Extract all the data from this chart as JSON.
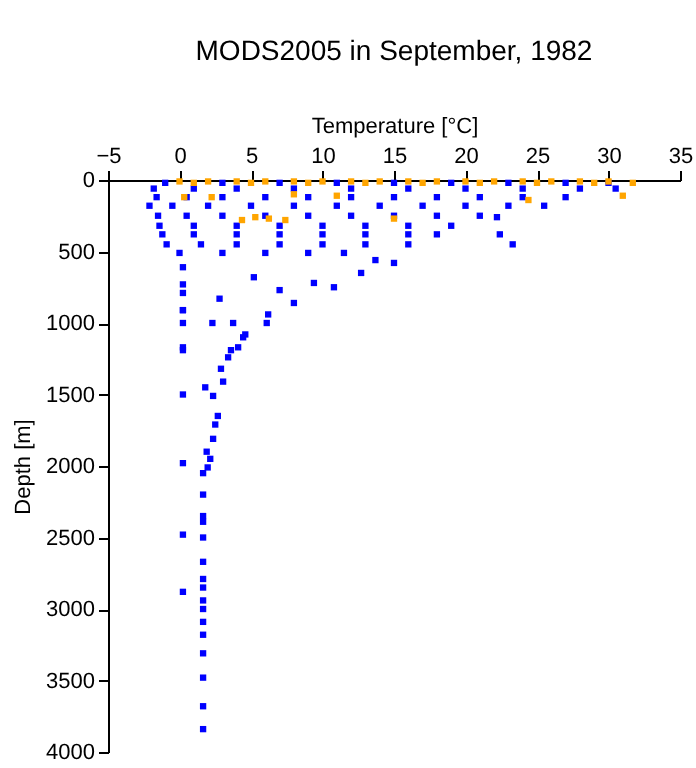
{
  "chart_data": {
    "type": "scatter",
    "title": "MODS2005 in September, 1982",
    "xlabel": "Temperature [°C]",
    "ylabel": "Depth [m]",
    "xlim": [
      -5,
      35
    ],
    "xticks": [
      -5,
      0,
      5,
      10,
      15,
      20,
      25,
      30,
      35
    ],
    "ylim": [
      4000,
      0
    ],
    "yticks": [
      0,
      500,
      1000,
      1500,
      2000,
      2500,
      3000,
      3500,
      4000
    ],
    "grid": false,
    "marker": "square",
    "series": [
      {
        "color": "#0000ff",
        "x": [
          -1,
          3,
          7,
          11,
          15,
          19,
          23,
          27,
          30,
          -1.8,
          1,
          4,
          8,
          12,
          16,
          20,
          24,
          28,
          30.5,
          -1.6,
          0.5,
          3,
          6,
          9,
          12,
          15,
          18,
          21,
          24,
          27,
          -2.1,
          -0.5,
          2,
          5,
          8,
          11,
          14,
          17,
          20,
          23,
          25.5,
          -1.5,
          0.5,
          3,
          6,
          9,
          12,
          15,
          18,
          21,
          22.2,
          -1.4,
          1,
          4,
          7,
          10,
          13,
          16,
          19,
          -1.2,
          1,
          4,
          7,
          10,
          13,
          16,
          18,
          22.4,
          -0.9,
          1.5,
          4,
          7,
          10,
          13,
          16,
          23.3,
          0,
          3,
          6,
          9,
          11.5,
          15,
          12.7,
          9.4,
          8,
          6.2,
          4.6,
          3.6,
          2.3,
          2.8,
          5.2,
          7,
          10.8,
          13.7,
          0.24,
          0.24,
          0.24,
          0.24,
          0.24,
          0.24,
          0.24,
          0.24,
          0.24,
          0.24,
          0.24,
          0.24,
          3.75,
          6.1,
          4.45,
          4.1,
          3.4,
          2.9,
          3.05,
          1.8,
          2.35,
          2.68,
          2.5,
          2.35,
          1.9,
          2.15,
          1.97,
          1.65,
          1.65,
          1.65,
          1.65,
          1.65,
          1.65,
          1.65,
          1.65,
          1.65,
          1.65,
          1.65,
          1.65,
          1.65,
          1.65,
          1.65,
          1.65
        ],
        "values": [
          20,
          20,
          20,
          20,
          20,
          20,
          20,
          20,
          20,
          60,
          60,
          60,
          60,
          60,
          60,
          60,
          60,
          60,
          60,
          120,
          120,
          120,
          120,
          120,
          120,
          120,
          120,
          120,
          120,
          120,
          180,
          180,
          180,
          180,
          180,
          180,
          180,
          180,
          180,
          180,
          180,
          250,
          250,
          250,
          250,
          250,
          250,
          250,
          250,
          250,
          260,
          320,
          320,
          320,
          320,
          320,
          320,
          320,
          320,
          380,
          380,
          380,
          380,
          380,
          380,
          380,
          380,
          380,
          450,
          450,
          450,
          450,
          450,
          450,
          450,
          450,
          510,
          510,
          510,
          510,
          510,
          580,
          650,
          720,
          860,
          940,
          1080,
          1190,
          1000,
          830,
          680,
          770,
          750,
          560,
          610,
          730,
          790,
          910,
          1170,
          910,
          1000,
          1190,
          1500,
          1980,
          2480,
          2880,
          1000,
          1000,
          1100,
          1170,
          1240,
          1320,
          1410,
          1450,
          1510,
          1650,
          1710,
          1810,
          1900,
          1950,
          2010,
          2050,
          2200,
          2350,
          2390,
          2500,
          2670,
          2790,
          2850,
          2940,
          3000,
          3090,
          3180,
          3310,
          3480,
          3680,
          3840
        ]
      },
      {
        "color": "#ffa500",
        "x": [
          0,
          2,
          4,
          6,
          8,
          10,
          12,
          14,
          16,
          18,
          20,
          22,
          24,
          26,
          28,
          30,
          1,
          5,
          9,
          13,
          17,
          21,
          25,
          29,
          0.33,
          2.25,
          4.37,
          5.3,
          6.25,
          7.4,
          15,
          11,
          8,
          24.4,
          31,
          31.7
        ],
        "values": [
          10,
          10,
          10,
          10,
          10,
          10,
          10,
          10,
          10,
          10,
          10,
          10,
          10,
          10,
          10,
          10,
          20,
          20,
          20,
          20,
          20,
          20,
          20,
          20,
          120,
          120,
          280,
          260,
          270,
          280,
          270,
          110,
          100,
          140,
          110,
          20
        ]
      }
    ]
  }
}
